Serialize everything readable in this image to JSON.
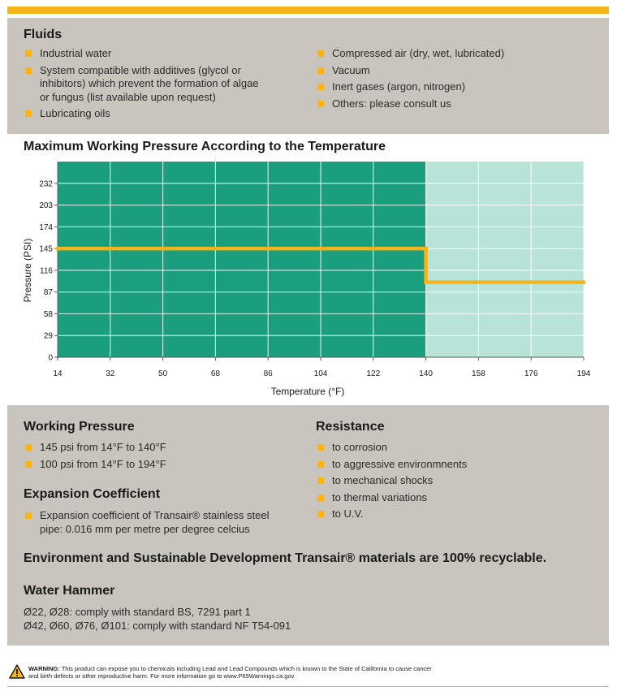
{
  "fluids": {
    "title": "Fluids",
    "left": [
      "Industrial water",
      "System compatible with additives (glycol or inhibitors) which prevent the formation of algae or fungus (list available upon request)",
      "Lubricating oils"
    ],
    "right": [
      "Compressed air (dry, wet, lubricated)",
      "Vacuum",
      "Inert gases (argon, nitrogen)",
      "Others: please consult us"
    ]
  },
  "chart_title": "Maximum Working Pressure According to the Temperature",
  "chart_data": {
    "type": "line",
    "title": "Maximum Working Pressure According to the Temperature",
    "xlabel": "Temperature (°F)",
    "ylabel": "Pressure (PSI)",
    "x_ticks": [
      14,
      32,
      50,
      68,
      86,
      104,
      122,
      140,
      158,
      176,
      194
    ],
    "y_ticks": [
      0,
      29,
      58,
      87,
      116,
      145,
      174,
      203,
      232
    ],
    "xlim": [
      14,
      194
    ],
    "ylim": [
      0,
      261
    ],
    "grid": true,
    "regions": [
      {
        "from": 14,
        "to": 140,
        "color": "#1a9e7e"
      },
      {
        "from": 140,
        "to": 194,
        "color": "#b8e3d8"
      }
    ],
    "series": [
      {
        "color": "#f5b418",
        "x": [
          14,
          140,
          140,
          194
        ],
        "y": [
          145,
          145,
          100,
          100
        ]
      }
    ]
  },
  "working_pressure": {
    "title": "Working Pressure",
    "items": [
      "145 psi from 14°F to 140°F",
      "100 psi from 14°F to 194°F"
    ]
  },
  "expansion": {
    "title": "Expansion Coefficient",
    "items": [
      "Expansion coefficient of Transair® stainless steel pipe: 0.016 mm per metre per degree celcius"
    ]
  },
  "resistance": {
    "title": "Resistance",
    "items": [
      "to corrosion",
      "to aggressive environmnents",
      "to mechanical shocks",
      "to thermal variations",
      "to U.V."
    ]
  },
  "environment_text": "Environment and Sustainable Development Transair® materials are 100% recyclable.",
  "water_hammer": {
    "title": "Water Hammer",
    "lines": [
      "Ø22, Ø28: comply with standard BS, 7291 part 1",
      "Ø42, Ø60, Ø76, Ø101: comply with standard NF T54-091"
    ]
  },
  "warning": {
    "label": "WARNING:",
    "line1": "This product can expose you to chemicals including Lead and Lead Compounds which is known to the State of California to cause cancer",
    "line2": "and birth defects or other reproductive harm. For more information go to www.P65Warnings.ca.gov"
  },
  "colors": {
    "accent": "#f5b418",
    "panel": "#c9c4bd",
    "chart_dark": "#1a9e7e",
    "chart_light": "#b8e3d8"
  }
}
